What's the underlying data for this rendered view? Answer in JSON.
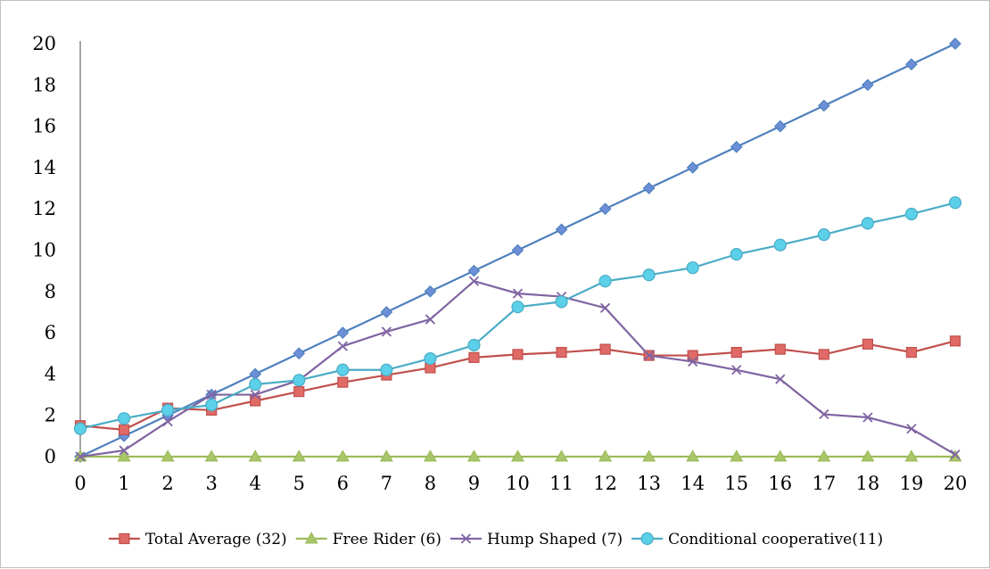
{
  "chart_data": {
    "type": "line",
    "title": "",
    "xlabel": "",
    "ylabel": "",
    "x": [
      0,
      1,
      2,
      3,
      4,
      5,
      6,
      7,
      8,
      9,
      10,
      11,
      12,
      13,
      14,
      15,
      16,
      17,
      18,
      19,
      20
    ],
    "xlim": [
      0,
      20
    ],
    "ylim": [
      0,
      20
    ],
    "yticks": [
      0,
      2,
      4,
      6,
      8,
      10,
      12,
      14,
      16,
      18,
      20
    ],
    "grid": false,
    "legend_position": "bottom",
    "series": [
      {
        "name": "",
        "color": "#4f81bd",
        "fill": "#6c8fd8",
        "marker": "diamond",
        "in_legend": false,
        "values": [
          0,
          1,
          2,
          3,
          4,
          5,
          6,
          7,
          8,
          9,
          10,
          11,
          12,
          13,
          14,
          15,
          16,
          17,
          18,
          19,
          20
        ]
      },
      {
        "name": "Total Average (32)",
        "color": "#c0504d",
        "fill": "#e06a66",
        "marker": "square",
        "in_legend": true,
        "values": [
          1.5,
          1.3,
          2.35,
          2.25,
          2.7,
          3.15,
          3.6,
          3.95,
          4.3,
          4.8,
          4.95,
          5.05,
          5.2,
          4.9,
          4.9,
          5.05,
          5.2,
          4.95,
          5.45,
          5.05,
          5.6
        ]
      },
      {
        "name": "Free Rider (6)",
        "color": "#9bbb59",
        "fill": "#a9c66a",
        "marker": "triangle",
        "in_legend": true,
        "values": [
          0,
          0,
          0,
          0,
          0,
          0,
          0,
          0,
          0,
          0,
          0,
          0,
          0,
          0,
          0,
          0,
          0,
          0,
          0,
          0,
          0
        ]
      },
      {
        "name": "Hump Shaped (7)",
        "color": "#8064a2",
        "fill": "#8064a2",
        "marker": "x",
        "in_legend": true,
        "values": [
          0,
          0.3,
          1.7,
          3.0,
          3.0,
          3.7,
          5.35,
          6.05,
          6.65,
          8.5,
          7.9,
          7.75,
          7.2,
          4.9,
          4.6,
          4.2,
          3.75,
          2.05,
          1.9,
          1.35,
          0.1
        ]
      },
      {
        "name": "Conditional cooperative(11)",
        "color": "#4bacc6",
        "fill": "#5bd0e8",
        "marker": "circle",
        "in_legend": true,
        "values": [
          1.35,
          1.85,
          2.25,
          2.5,
          3.5,
          3.7,
          4.2,
          4.2,
          4.75,
          5.4,
          7.25,
          7.5,
          8.5,
          8.8,
          9.15,
          9.8,
          10.25,
          10.75,
          11.3,
          11.75,
          12.3
        ]
      }
    ]
  }
}
